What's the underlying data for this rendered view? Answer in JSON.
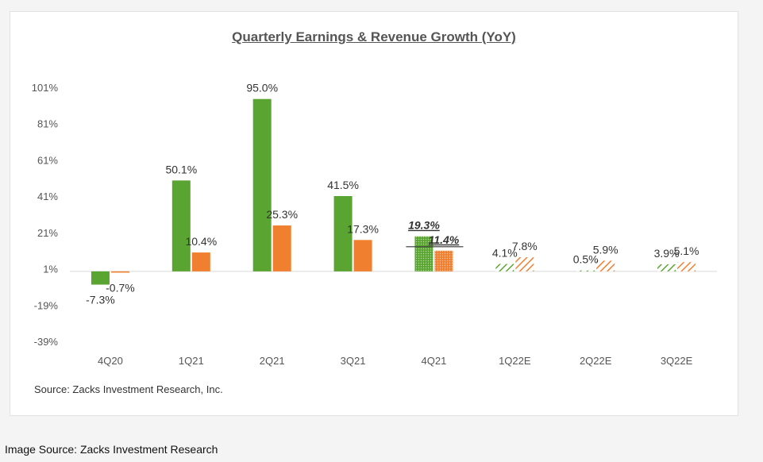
{
  "caption": "Image Source: Zacks Investment Research",
  "chart_data": {
    "type": "bar",
    "title": "Quarterly Earnings & Revenue Growth (YoY)",
    "source": "Source: Zacks Investment Research, Inc.",
    "categories": [
      "4Q20",
      "1Q21",
      "2Q21",
      "3Q21",
      "4Q21",
      "1Q22E",
      "2Q22E",
      "3Q22E"
    ],
    "yticks": [
      "101%",
      "81%",
      "61%",
      "41%",
      "21%",
      "1%",
      "-19%",
      "-39%"
    ],
    "ylim": [
      -39,
      101
    ],
    "series": [
      {
        "color": "#5aa531",
        "values": [
          -7.3,
          50.1,
          95.0,
          41.5,
          19.3,
          4.1,
          0.5,
          3.9
        ],
        "labels": [
          "-7.3%",
          "50.1%",
          "95.0%",
          "41.5%",
          "19.3%",
          "4.1%",
          "0.5%",
          "3.9%"
        ]
      },
      {
        "color": "#f08030",
        "values": [
          -0.7,
          10.4,
          25.3,
          17.3,
          11.4,
          7.8,
          5.9,
          5.1
        ],
        "labels": [
          "-0.7%",
          "10.4%",
          "25.3%",
          "17.3%",
          "11.4%",
          "7.8%",
          "5.9%",
          "5.1%"
        ]
      }
    ],
    "bar_styles": [
      "solid",
      "solid",
      "solid",
      "solid",
      "dotted",
      "hatched",
      "hatched",
      "hatched"
    ],
    "emphasized_category": "4Q21",
    "grid": false,
    "legend": "none"
  }
}
